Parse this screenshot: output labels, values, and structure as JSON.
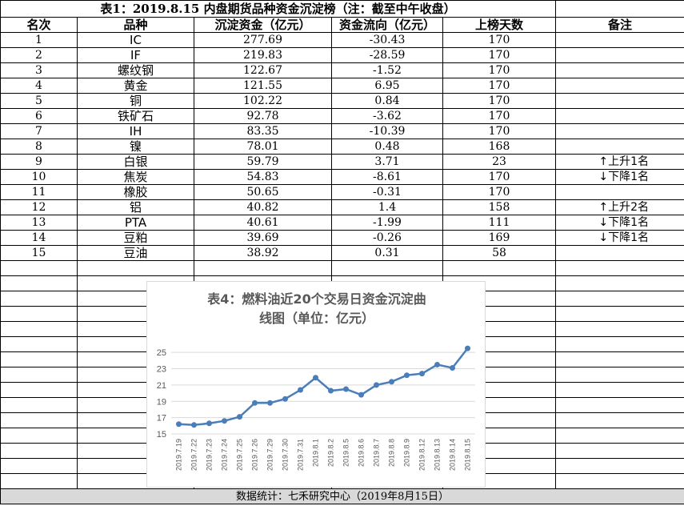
{
  "table": {
    "title": "表1：2019.8.15 内盘期货品种资金沉淀榜（注：截至中午收盘）",
    "headers": [
      "名次",
      "品种",
      "沉淀资金（亿元）",
      "资金流向（亿元）",
      "上榜天数",
      "备注"
    ],
    "rows": [
      {
        "rank": "1",
        "name": "IC",
        "capital": "277.69",
        "flow": "-30.43",
        "days": "170",
        "note": ""
      },
      {
        "rank": "2",
        "name": "IF",
        "capital": "219.83",
        "flow": "-28.59",
        "days": "170",
        "note": ""
      },
      {
        "rank": "3",
        "name": "螺纹钢",
        "capital": "122.67",
        "flow": "-1.52",
        "days": "170",
        "note": ""
      },
      {
        "rank": "4",
        "name": "黄金",
        "capital": "121.55",
        "flow": "6.95",
        "days": "170",
        "note": ""
      },
      {
        "rank": "5",
        "name": "铜",
        "capital": "102.22",
        "flow": "0.84",
        "days": "170",
        "note": ""
      },
      {
        "rank": "6",
        "name": "铁矿石",
        "capital": "92.78",
        "flow": "-3.62",
        "days": "170",
        "note": ""
      },
      {
        "rank": "7",
        "name": "IH",
        "capital": "83.35",
        "flow": "-10.39",
        "days": "170",
        "note": ""
      },
      {
        "rank": "8",
        "name": "镍",
        "capital": "78.01",
        "flow": "0.48",
        "days": "168",
        "note": ""
      },
      {
        "rank": "9",
        "name": "白银",
        "capital": "59.79",
        "flow": "3.71",
        "days": "23",
        "note": "↑上升1名"
      },
      {
        "rank": "10",
        "name": "焦炭",
        "capital": "54.83",
        "flow": "-8.61",
        "days": "170",
        "note": "↓下降1名"
      },
      {
        "rank": "11",
        "name": "橡胶",
        "capital": "50.65",
        "flow": "-0.31",
        "days": "170",
        "note": ""
      },
      {
        "rank": "12",
        "name": "铝",
        "capital": "40.82",
        "flow": "1.4",
        "days": "158",
        "note": "↑上升2名"
      },
      {
        "rank": "13",
        "name": "PTA",
        "capital": "40.61",
        "flow": "-1.99",
        "days": "111",
        "note": "↓下降1名"
      },
      {
        "rank": "14",
        "name": "豆粕",
        "capital": "39.69",
        "flow": "-0.26",
        "days": "169",
        "note": "↓下降1名"
      },
      {
        "rank": "15",
        "name": "豆油",
        "capital": "38.92",
        "flow": "0.31",
        "days": "58",
        "note": ""
      }
    ],
    "footer": "数据统计：七禾研究中心（2019年8月15日）"
  },
  "chart_data": {
    "type": "line",
    "title_line1": "表4：燃料油近20个交易日资金沉淀曲",
    "title_line2": "线图（单位：亿元）",
    "x": [
      "2019.7.19",
      "2019.7.22",
      "2019.7.23",
      "2019.7.24",
      "2019.7.25",
      "2019.7.26",
      "2019.7.29",
      "2019.7.30",
      "2019.7.31",
      "2019.8.1",
      "2019.8.2",
      "2019.8.5",
      "2019.8.6",
      "2019.8.7",
      "2019.8.8",
      "2019.8.9",
      "2019.8.12",
      "2019.8.13",
      "2019.8.14",
      "2019.8.15"
    ],
    "values": [
      16.2,
      16.1,
      16.3,
      16.6,
      17.1,
      18.8,
      18.8,
      19.3,
      20.4,
      21.9,
      20.3,
      20.5,
      19.8,
      21.0,
      21.4,
      22.2,
      22.4,
      23.5,
      23.1,
      25.5
    ],
    "yticks": [
      15,
      17,
      19,
      21,
      23,
      25
    ],
    "ylim": [
      15,
      26
    ],
    "grid": true,
    "line_color": "#4a7ebb"
  }
}
